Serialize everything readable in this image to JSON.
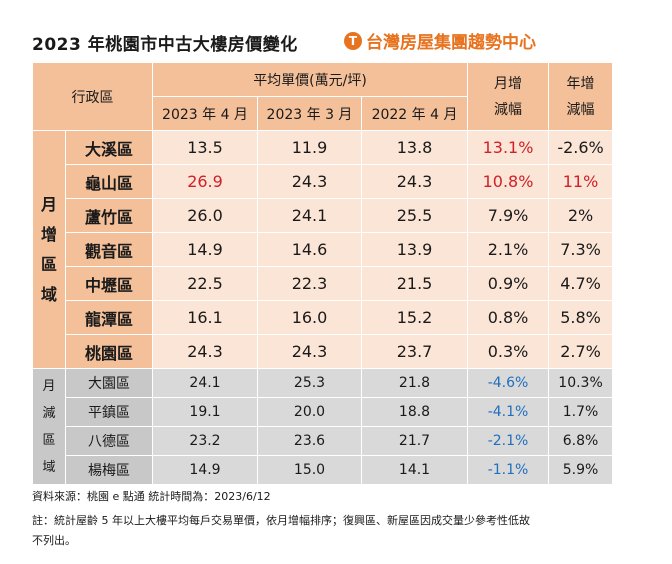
{
  "title": "2023 年桃園市中古大樓房價變化",
  "brand": {
    "logo_text": "T",
    "name": "台灣房屋集團趨勢中心"
  },
  "header": {
    "district": "行政區",
    "avg_price": "平均單價(萬元/坪)",
    "cols": [
      "2023 年 4 月",
      "2023 年 3 月",
      "2022 年 4 月"
    ],
    "mom": "月增\n減幅",
    "yoy": "年增\n減幅"
  },
  "group_up": {
    "label": "月\n增\n區\n域",
    "rows": [
      {
        "name": "大溪區",
        "v1": "13.5",
        "v2": "11.9",
        "v3": "13.8",
        "mom": "13.1%",
        "yoy": "-2.6%"
      },
      {
        "name": "龜山區",
        "v1": "26.9",
        "v2": "24.3",
        "v3": "24.3",
        "mom": "10.8%",
        "yoy": "11%"
      },
      {
        "name": "蘆竹區",
        "v1": "26.0",
        "v2": "24.1",
        "v3": "25.5",
        "mom": "7.9%",
        "yoy": "2%"
      },
      {
        "name": "觀音區",
        "v1": "14.9",
        "v2": "14.6",
        "v3": "13.9",
        "mom": "2.1%",
        "yoy": "7.3%"
      },
      {
        "name": "中壢區",
        "v1": "22.5",
        "v2": "22.3",
        "v3": "21.5",
        "mom": "0.9%",
        "yoy": "4.7%"
      },
      {
        "name": "龍潭區",
        "v1": "16.1",
        "v2": "16.0",
        "v3": "15.2",
        "mom": "0.8%",
        "yoy": "5.8%"
      },
      {
        "name": "桃園區",
        "v1": "24.3",
        "v2": "24.3",
        "v3": "23.7",
        "mom": "0.3%",
        "yoy": "2.7%"
      }
    ]
  },
  "group_down": {
    "label": "月\n減\n區\n域",
    "rows": [
      {
        "name": "大園區",
        "v1": "24.1",
        "v2": "25.3",
        "v3": "21.8",
        "mom": "-4.6%",
        "yoy": "10.3%"
      },
      {
        "name": "平鎮區",
        "v1": "19.1",
        "v2": "20.0",
        "v3": "18.8",
        "mom": "-4.1%",
        "yoy": "1.7%"
      },
      {
        "name": "八德區",
        "v1": "23.2",
        "v2": "23.6",
        "v3": "21.7",
        "mom": "-2.1%",
        "yoy": "6.8%"
      },
      {
        "name": "楊梅區",
        "v1": "14.9",
        "v2": "15.0",
        "v3": "14.1",
        "mom": "-1.1%",
        "yoy": "5.9%"
      }
    ]
  },
  "footnotes": {
    "source": "資料來源：桃園 e 點通 統計時間為：2023/6/12",
    "note": "註：統計屋齡 5 年以上大樓平均每戶交易單價，依月增幅排序；復興區、新屋區因成交量少參考性低故",
    "note2": "不列出。"
  },
  "colors": {
    "header": "#f4c09a",
    "up_row": "#fbe5d6",
    "down_row": "#d9d9d9",
    "highlight_red": "#d0202a",
    "decrease_blue": "#1e6fc0",
    "brand": "#e8731f"
  }
}
